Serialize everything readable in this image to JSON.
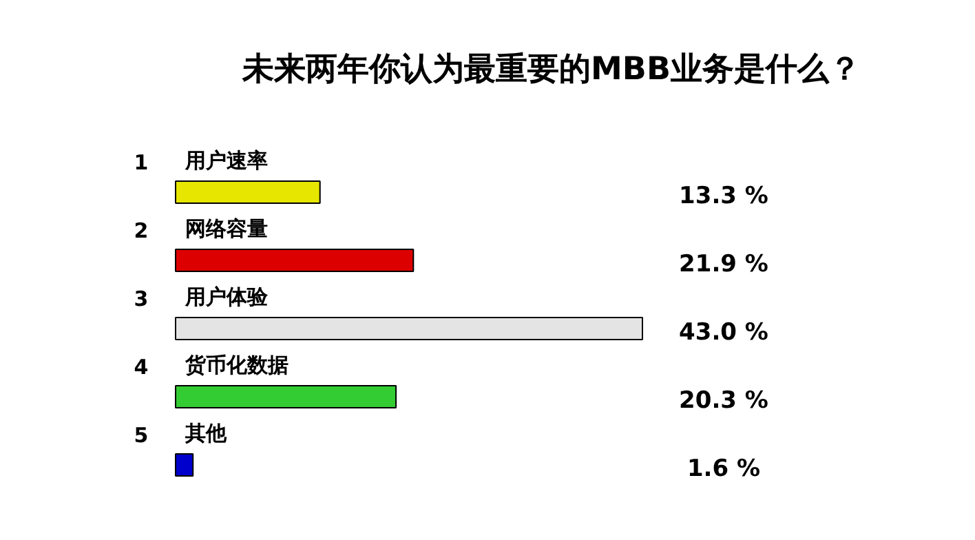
{
  "chart_data": {
    "type": "bar",
    "orientation": "horizontal",
    "title": "未来两年你认为最重要的MBB业务是什么？",
    "categories": [
      "用户速率",
      "网络容量",
      "用户体验",
      "货币化数据",
      "其他"
    ],
    "values": [
      13.3,
      21.9,
      43.0,
      20.3,
      1.6
    ],
    "colors": [
      "#e6e600",
      "#dd0000",
      "#e4e4e4",
      "#33cc33",
      "#0000cc"
    ],
    "value_labels": [
      "13.3 %",
      "21.9 %",
      "43.0 %",
      "20.3 %",
      "1.6 %"
    ],
    "annotations": [
      "1",
      "2",
      "3",
      "4",
      "5"
    ],
    "grid": false
  }
}
